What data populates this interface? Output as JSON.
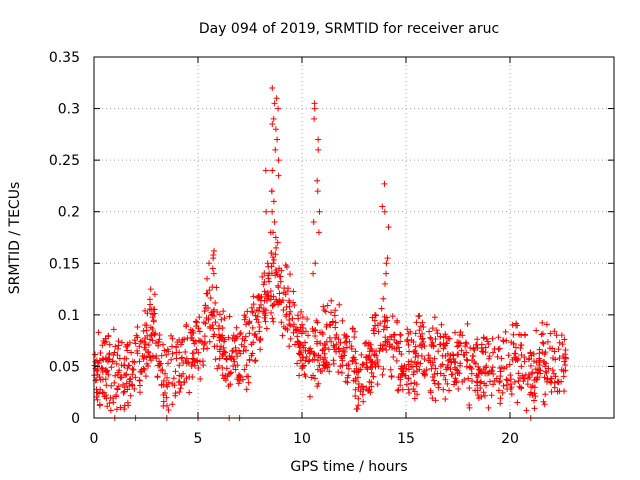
{
  "chart_data": {
    "type": "scatter",
    "title": "Day 094 of 2019, SRMTID for receiver aruc",
    "xlabel": "GPS time / hours",
    "ylabel": "SRMTID / TECUs",
    "xlim": [
      0,
      25
    ],
    "ylim": [
      0,
      0.35
    ],
    "x_ticks": [
      0,
      5,
      10,
      15,
      20
    ],
    "x_tick_labels": [
      "0",
      "5",
      "10",
      "15",
      "20"
    ],
    "y_ticks": [
      0,
      0.05,
      0.1,
      0.15,
      0.2,
      0.25,
      0.3,
      0.35
    ],
    "y_tick_labels": [
      "0",
      "0.05",
      "0.1",
      "0.15",
      "0.2",
      "0.25",
      "0.3",
      "0.35"
    ],
    "grid": true,
    "marker": "plus",
    "series": [
      {
        "name": "SRMTID",
        "color": "#ff0000",
        "profile": [
          {
            "t": 0.0,
            "m": 0.04
          },
          {
            "t": 0.5,
            "m": 0.05
          },
          {
            "t": 1.0,
            "m": 0.045
          },
          {
            "t": 1.5,
            "m": 0.04
          },
          {
            "t": 2.0,
            "m": 0.048
          },
          {
            "t": 2.5,
            "m": 0.07
          },
          {
            "t": 2.9,
            "m": 0.085
          },
          {
            "t": 3.3,
            "m": 0.04
          },
          {
            "t": 4.0,
            "m": 0.05
          },
          {
            "t": 5.0,
            "m": 0.06
          },
          {
            "t": 5.6,
            "m": 0.11
          },
          {
            "t": 6.0,
            "m": 0.08
          },
          {
            "t": 6.5,
            "m": 0.06
          },
          {
            "t": 7.0,
            "m": 0.06
          },
          {
            "t": 7.5,
            "m": 0.07
          },
          {
            "t": 8.0,
            "m": 0.1
          },
          {
            "t": 8.5,
            "m": 0.13
          },
          {
            "t": 9.0,
            "m": 0.12
          },
          {
            "t": 9.5,
            "m": 0.1
          },
          {
            "t": 10.0,
            "m": 0.07
          },
          {
            "t": 10.5,
            "m": 0.06
          },
          {
            "t": 11.0,
            "m": 0.07
          },
          {
            "t": 11.5,
            "m": 0.08
          },
          {
            "t": 12.0,
            "m": 0.07
          },
          {
            "t": 12.5,
            "m": 0.05
          },
          {
            "t": 13.0,
            "m": 0.04
          },
          {
            "t": 13.5,
            "m": 0.06
          },
          {
            "t": 14.0,
            "m": 0.08
          },
          {
            "t": 14.5,
            "m": 0.06
          },
          {
            "t": 15.0,
            "m": 0.06
          },
          {
            "t": 16.0,
            "m": 0.06
          },
          {
            "t": 17.0,
            "m": 0.06
          },
          {
            "t": 18.0,
            "m": 0.05
          },
          {
            "t": 19.0,
            "m": 0.05
          },
          {
            "t": 20.0,
            "m": 0.055
          },
          {
            "t": 21.0,
            "m": 0.05
          },
          {
            "t": 22.0,
            "m": 0.05
          },
          {
            "t": 22.7,
            "m": 0.05
          }
        ],
        "noise_min": 0.015,
        "noise_max": 0.045,
        "sample_count": 1400,
        "x_range": [
          0.0,
          22.7
        ],
        "spikes": [
          {
            "x": 8.7,
            "values": [
              0.32,
              0.31,
              0.305,
              0.3,
              0.29,
              0.285,
              0.28,
              0.27,
              0.26,
              0.25,
              0.24,
              0.235,
              0.22,
              0.21,
              0.2,
              0.19,
              0.18,
              0.175,
              0.17,
              0.165,
              0.16,
              0.15
            ]
          },
          {
            "x": 8.4,
            "values": [
              0.24,
              0.22,
              0.2,
              0.18,
              0.16,
              0.15
            ]
          },
          {
            "x": 10.7,
            "values": [
              0.305,
              0.3,
              0.29,
              0.27,
              0.26,
              0.23,
              0.22,
              0.2,
              0.19,
              0.18,
              0.15,
              0.14
            ]
          },
          {
            "x": 14.0,
            "values": [
              0.227,
              0.205,
              0.2,
              0.185,
              0.155,
              0.15,
              0.14,
              0.13
            ]
          },
          {
            "x": 5.6,
            "values": [
              0.162,
              0.158,
              0.155,
              0.15,
              0.145,
              0.14,
              0.135
            ]
          },
          {
            "x": 2.8,
            "values": [
              0.125,
              0.12,
              0.115,
              0.11,
              0.105
            ]
          }
        ],
        "zeros": [
          1.0,
          2.0,
          3.5,
          5.0,
          6.5,
          7.0,
          21.0
        ]
      }
    ]
  }
}
